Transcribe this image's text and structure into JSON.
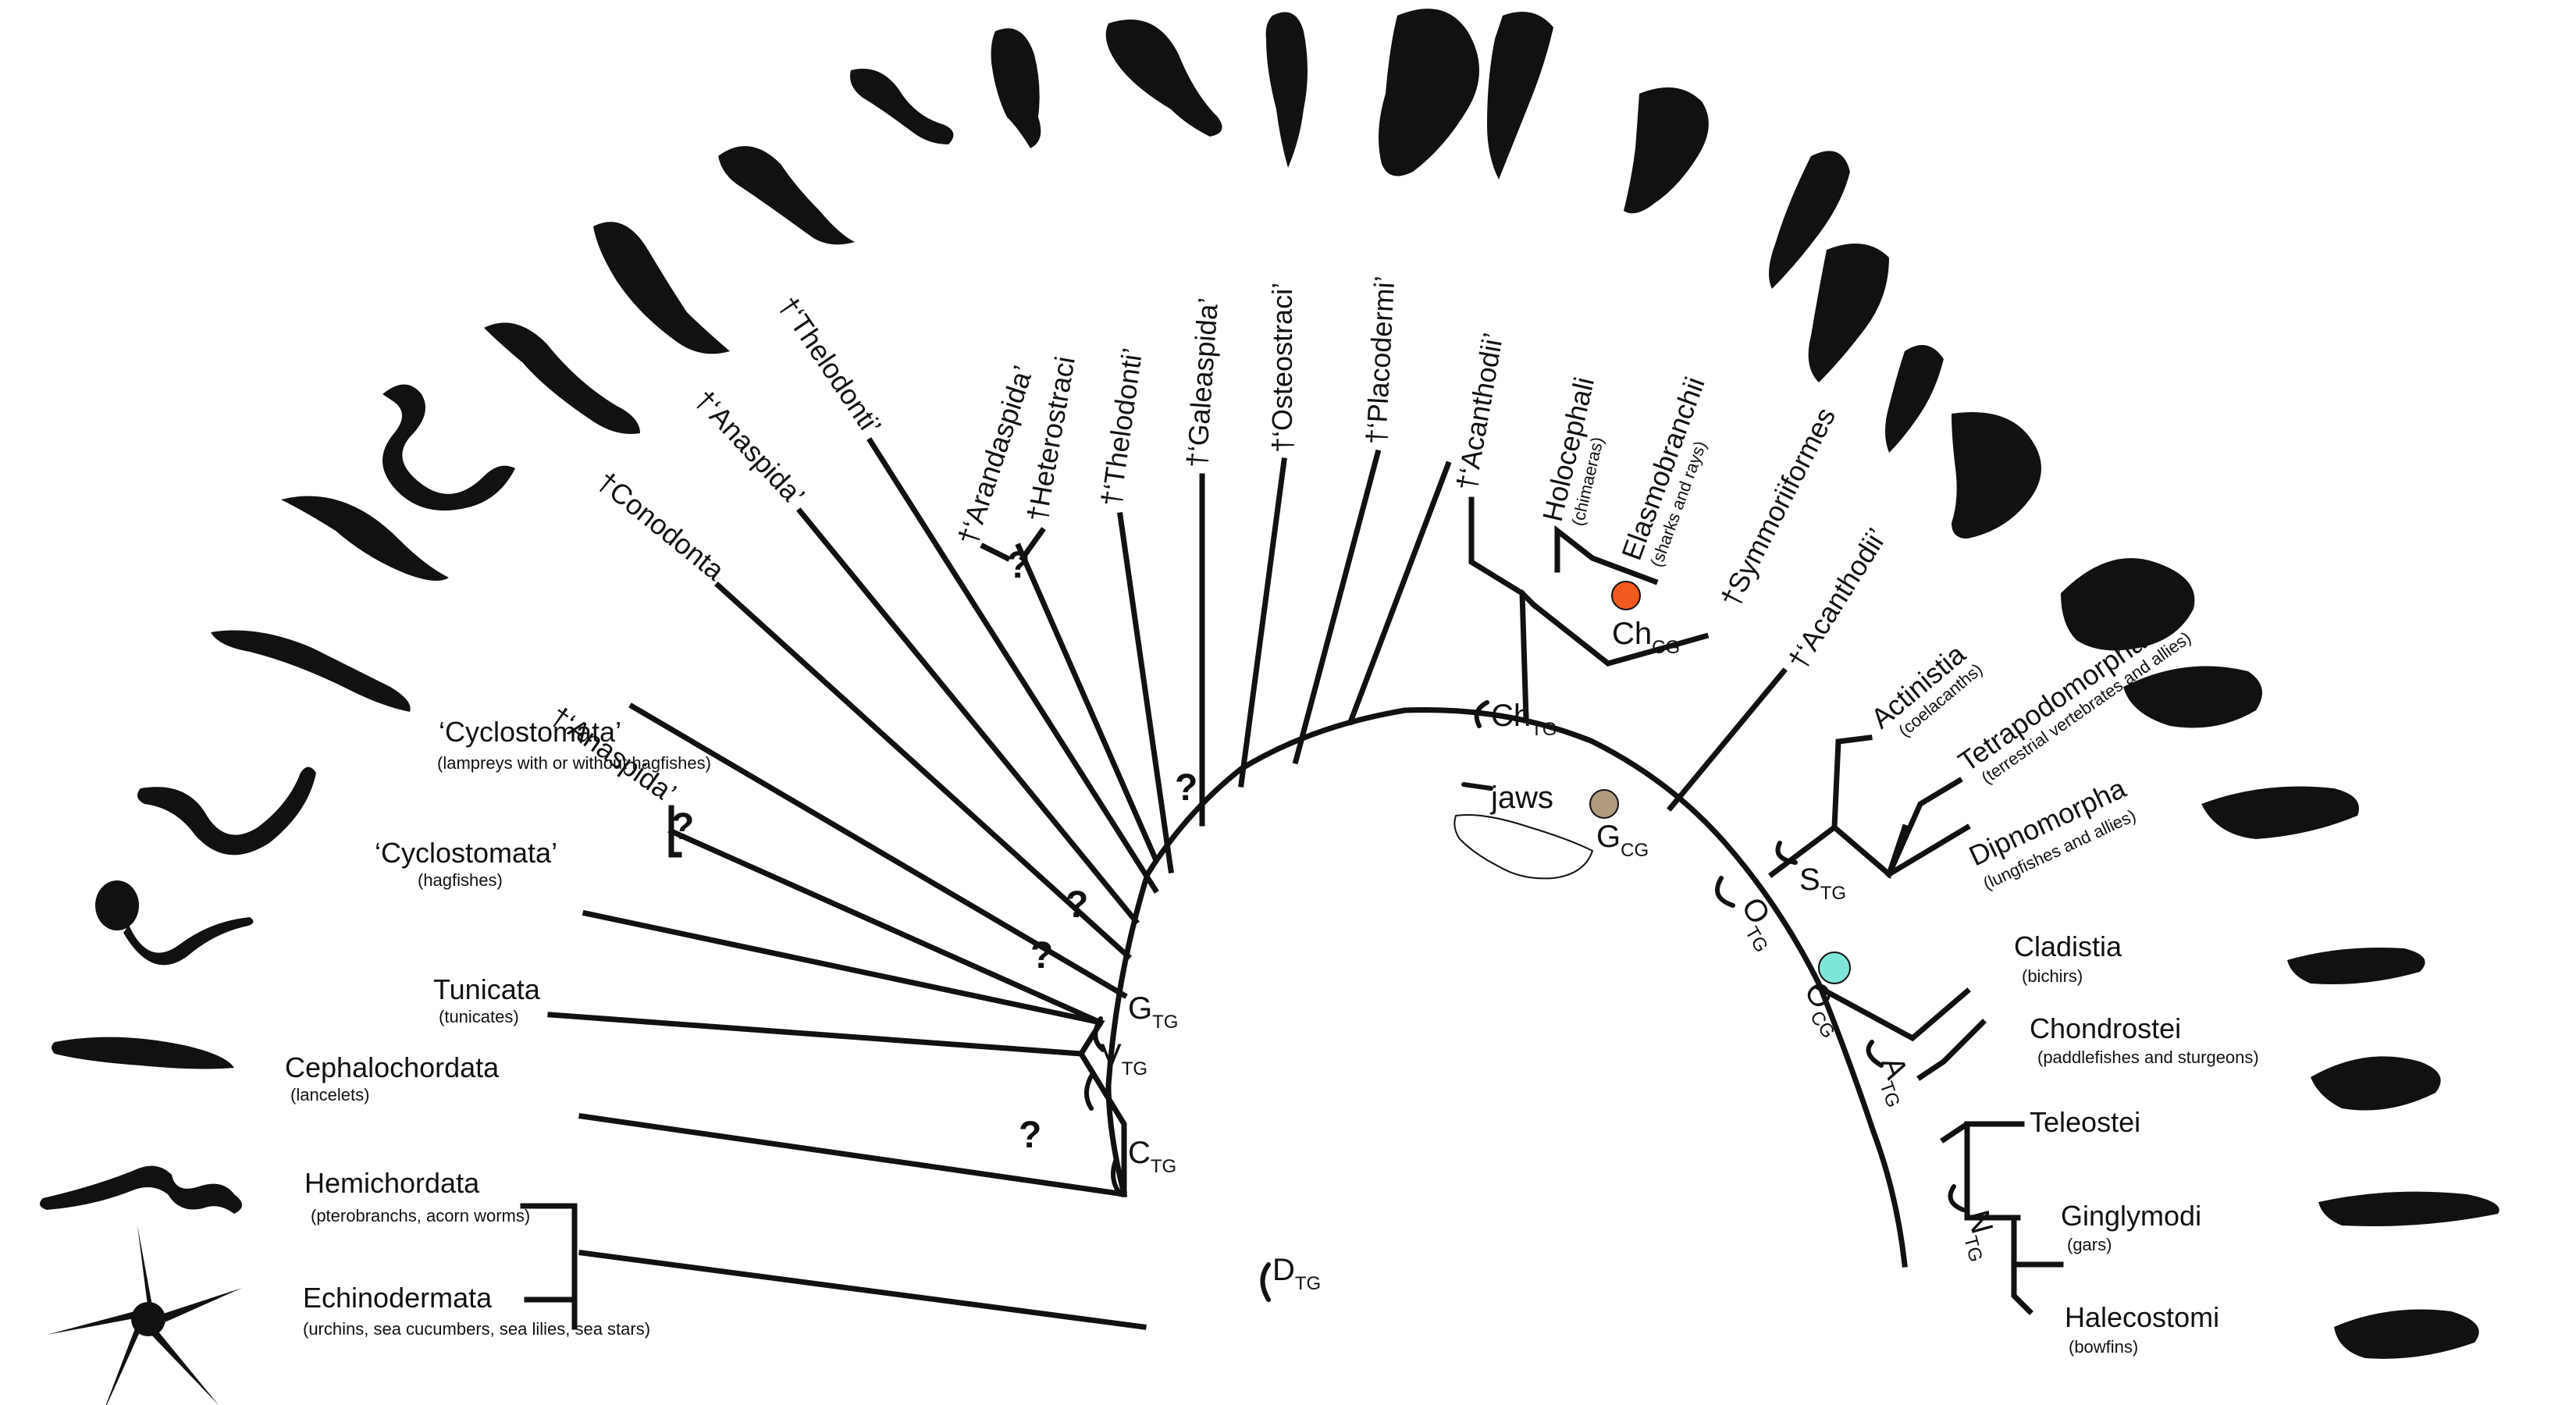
{
  "taxa": {
    "echinodermata": {
      "name": "Echinodermata",
      "note": "(urchins, sea cucumbers, sea lilies, sea stars)"
    },
    "hemichordata": {
      "name": "Hemichordata",
      "note": "(pterobranchs, acorn worms)"
    },
    "cephalochordata": {
      "name": "Cephalochordata",
      "note": "(lancelets)"
    },
    "tunicata": {
      "name": "Tunicata",
      "note": "(tunicates)"
    },
    "cyclo_hag": {
      "name": "‘Cyclostomata’",
      "note": "(hagfishes)"
    },
    "cyclo_lamprey": {
      "name": "‘Cyclostomata’",
      "note": "(lampreys with or without hagfishes)"
    },
    "anaspida1": {
      "name": "†‘Anaspida’"
    },
    "conodonta": {
      "name": "†Conodonta"
    },
    "anaspida2": {
      "name": "†‘Anaspida’"
    },
    "thelodonti1": {
      "name": "†‘Thelodonti’"
    },
    "arandaspida": {
      "name": "†‘Arandaspida’"
    },
    "heterostraci": {
      "name": "†Heterostraci"
    },
    "thelodonti2": {
      "name": "†‘Thelodonti’"
    },
    "galeaspida": {
      "name": "†‘Galeaspida’"
    },
    "osteostraci": {
      "name": "†‘Osteostraci’"
    },
    "placodermi": {
      "name": "†‘Placodermi’"
    },
    "acanthodii1": {
      "name": "†‘Acanthodii’"
    },
    "holocephali": {
      "name": "Holocephali",
      "note": "(chimaeras)"
    },
    "elasmobranchii": {
      "name": "Elasmobranchii",
      "note": "(sharks and rays)"
    },
    "symmoriiformes": {
      "name": "†Symmoriiformes"
    },
    "acanthodii2": {
      "name": "†‘Acanthodii’"
    },
    "actinistia": {
      "name": "Actinistia",
      "note": "(coelacanths)"
    },
    "tetrapodomorpha": {
      "name": "Tetrapodomorpha",
      "note": "(terrestrial vertebrates and allies)"
    },
    "dipnomorpha": {
      "name": "Dipnomorpha",
      "note": "(lungfishes and allies)"
    },
    "cladistia": {
      "name": "Cladistia",
      "note": "(bichirs)"
    },
    "chondrostei": {
      "name": "Chondrostei",
      "note": "(paddlefishes and sturgeons)"
    },
    "teleostei": {
      "name": "Teleostei"
    },
    "ginglymodi": {
      "name": "Ginglymodi",
      "note": "(gars)"
    },
    "halecostomi": {
      "name": "Halecostomi",
      "note": "(bowfins)"
    }
  },
  "nodes": {
    "D": {
      "letter": "D",
      "sub": "TG"
    },
    "C": {
      "letter": "C",
      "sub": "TG"
    },
    "V": {
      "letter": "V",
      "sub": "TG"
    },
    "G_tg": {
      "letter": "G",
      "sub": "TG"
    },
    "G_cg": {
      "letter": "G",
      "sub": "CG"
    },
    "Ch_tg": {
      "letter": "Ch",
      "sub": "TG"
    },
    "Ch_cg": {
      "letter": "Ch",
      "sub": "CG"
    },
    "O_tg": {
      "letter": "O",
      "sub": "TG"
    },
    "O_cg": {
      "letter": "O",
      "sub": "CG"
    },
    "S_tg": {
      "letter": "S",
      "sub": "TG"
    },
    "A_tg": {
      "letter": "A",
      "sub": "TG"
    },
    "N_tg": {
      "letter": "N",
      "sub": "TG"
    }
  },
  "jaws_label": "jaws",
  "uncertain_mark": "?",
  "colors": {
    "line": "#111111",
    "gnathostome_dot": "#b09b80",
    "chondrichthyan_dot": "#f25a1f",
    "osteichthyan_dot": "#7ee6d9"
  },
  "silhouettes": [
    "sea-star",
    "acorn-worm",
    "lancelet",
    "tunicate-larva",
    "hagfish",
    "lamprey",
    "conodont",
    "anaspid",
    "anaspid-2",
    "thelodont",
    "arandaspid",
    "heterostracan",
    "thelodont-2",
    "galeaspid",
    "osteostracan",
    "placoderm",
    "acanthodian",
    "chimaera",
    "shark",
    "symmoriiform",
    "acanthodian-2",
    "coelacanth",
    "tetrapodomorph",
    "lungfish",
    "bichir",
    "sturgeon",
    "teleost",
    "gar",
    "bowfin"
  ]
}
